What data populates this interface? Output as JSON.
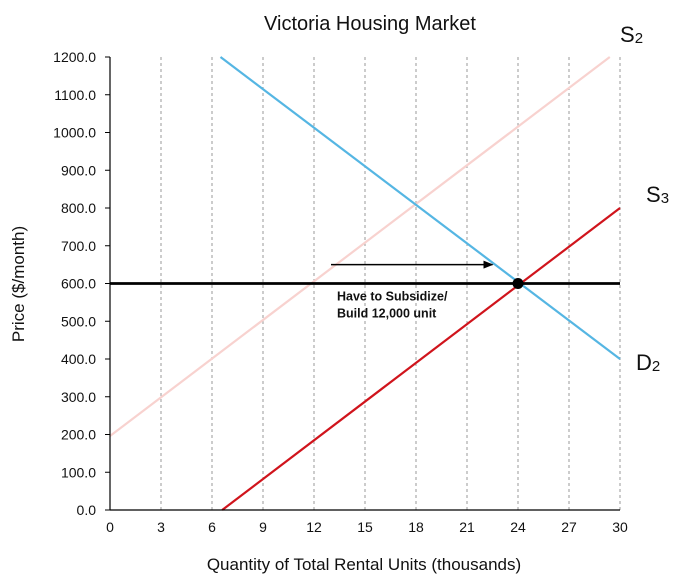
{
  "chart_data": {
    "type": "line",
    "title": "Victoria Housing Market",
    "xlabel": "Quantity of Total Rental Units (thousands)",
    "ylabel": "Price ($/month)",
    "xlim": [
      0,
      30
    ],
    "ylim": [
      0,
      1200
    ],
    "xticks": [
      "0",
      "3",
      "6",
      "9",
      "12",
      "15",
      "18",
      "21",
      "24",
      "27",
      "30"
    ],
    "yticks": [
      "0.0",
      "100.0",
      "200.0",
      "300.0",
      "400.0",
      "500.0",
      "600.0",
      "700.0",
      "800.0",
      "900.0",
      "1000.0",
      "1100.0",
      "1200.0"
    ],
    "grid": {
      "vertical": true,
      "horizontal": false
    },
    "series": [
      {
        "key": "s2",
        "label_main": "S",
        "label_sub": "2",
        "color": "#f8d2cf",
        "x": [
          0,
          29.4
        ],
        "y": [
          196,
          1200
        ]
      },
      {
        "key": "d2",
        "label_main": "D",
        "label_sub": "2",
        "color": "#55b6e3",
        "x": [
          6.5,
          30
        ],
        "y": [
          1200,
          400
        ]
      },
      {
        "key": "s3",
        "label_main": "S",
        "label_sub": "3",
        "color": "#d0141c",
        "x": [
          6.6,
          30
        ],
        "y": [
          0,
          800
        ]
      }
    ],
    "price_line": {
      "y": 600,
      "x": [
        0,
        30
      ],
      "color": "#000000"
    },
    "equilibrium_point": {
      "x": 24,
      "y": 600
    },
    "arrow": {
      "x": [
        13,
        22.5
      ],
      "y": 650
    },
    "annotation": {
      "x": 13,
      "y": 560,
      "lines": [
        "Have to Subsidize/",
        "Build 12,000 unit"
      ]
    }
  }
}
